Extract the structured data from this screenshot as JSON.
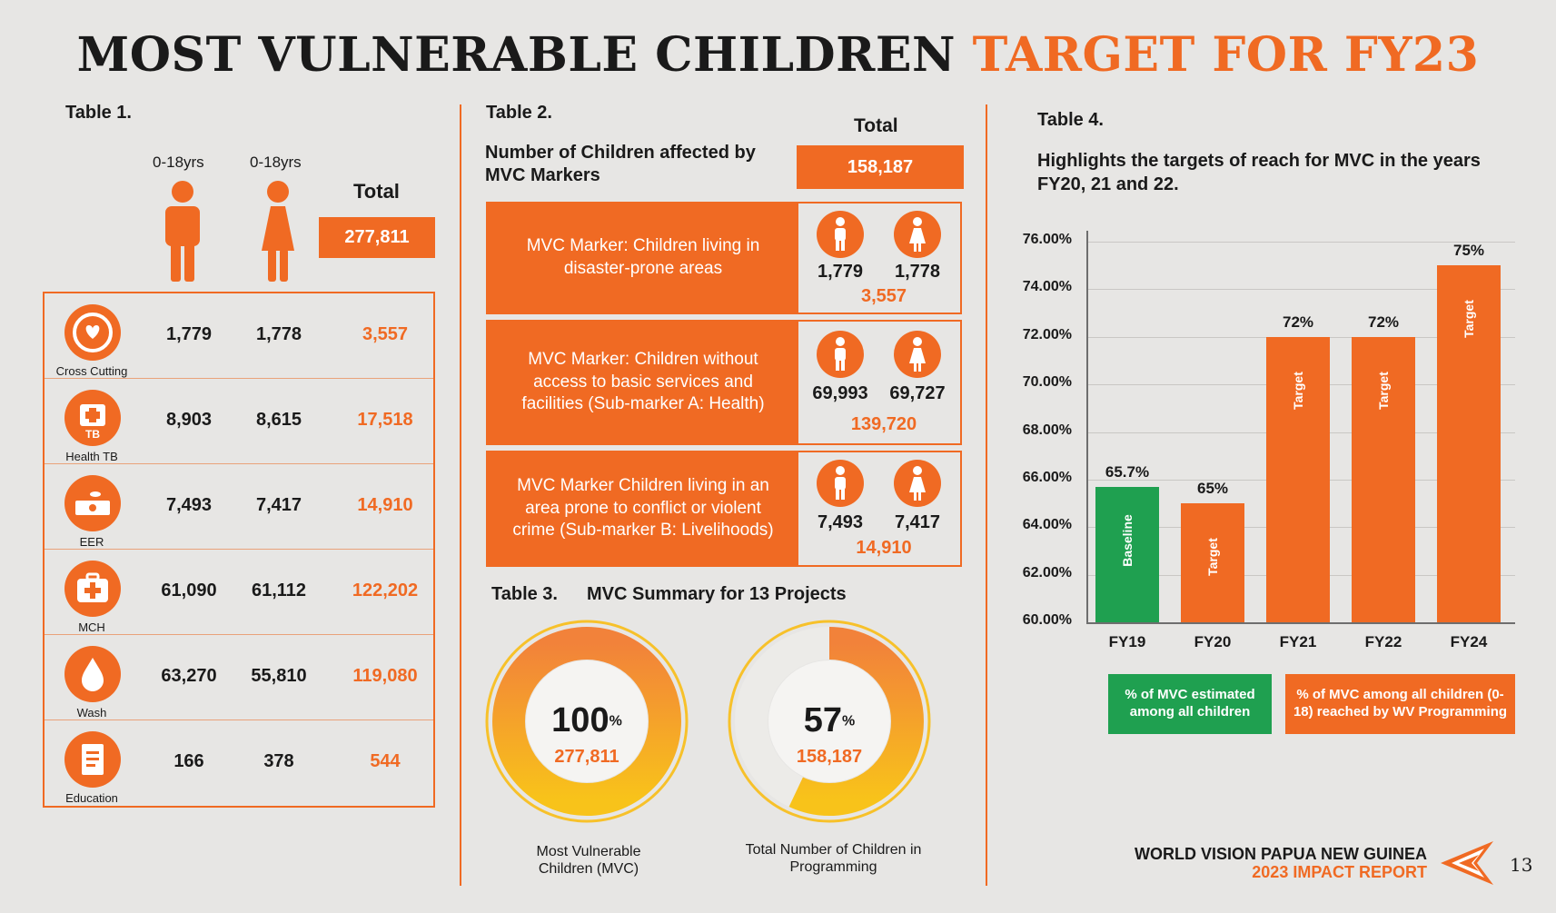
{
  "title": {
    "part1": "MOST VULNERABLE CHILDREN",
    "part2": "TARGET FOR FY23"
  },
  "table1": {
    "label": "Table 1.",
    "age_male": "0-18yrs",
    "age_female": "0-18yrs",
    "total_label": "Total",
    "total_value": "277,811",
    "rows": [
      {
        "category": "Cross Cutting",
        "icon": "heart-hands-icon",
        "male": "1,779",
        "female": "1,778",
        "total": "3,557"
      },
      {
        "category": "Health TB",
        "icon": "medical-kit-tb-icon",
        "male": "8,903",
        "female": "8,615",
        "total": "17,518"
      },
      {
        "category": "EER",
        "icon": "money-bundle-icon",
        "male": "7,493",
        "female": "7,417",
        "total": "14,910"
      },
      {
        "category": "MCH",
        "icon": "medical-kit-icon",
        "male": "61,090",
        "female": "61,112",
        "total": "122,202"
      },
      {
        "category": "Wash",
        "icon": "water-drop-icon",
        "male": "63,270",
        "female": "55,810",
        "total": "119,080"
      },
      {
        "category": "Education",
        "icon": "book-icon",
        "male": "166",
        "female": "378",
        "total": "544"
      }
    ]
  },
  "table2": {
    "label": "Table 2.",
    "heading": "Number of Children affected by MVC Markers",
    "total_label": "Total",
    "total_value": "158,187",
    "markers": [
      {
        "text": "MVC Marker: Children living in disaster-prone areas",
        "male": "1,779",
        "female": "1,778",
        "total": "3,557"
      },
      {
        "text": "MVC Marker:  Children without access to basic services and facilities (Sub-marker A: Health)",
        "male": "69,993",
        "female": "69,727",
        "total": "139,720"
      },
      {
        "text": "MVC Marker Children living in an area prone to conflict or violent crime (Sub-marker B: Livelihoods)",
        "male": "7,493",
        "female": "7,417",
        "total": "14,910"
      }
    ]
  },
  "table3": {
    "label": "Table 3.",
    "heading": "MVC Summary for 13 Projects",
    "donuts": [
      {
        "percent": "100",
        "percent_sign": "%",
        "value": "277,811",
        "fraction": 1.0,
        "caption": "Most Vulnerable Children (MVC)"
      },
      {
        "percent": "57",
        "percent_sign": "%",
        "value": "158,187",
        "fraction": 0.57,
        "caption": "Total Number of Children in Programming"
      }
    ]
  },
  "table4": {
    "label": "Table 4.",
    "heading": "Highlights the targets of reach for MVC in the years FY20, 21 and 22.",
    "legend": [
      {
        "text": "% of MVC estimated among all children",
        "color": "#1fa050"
      },
      {
        "text": "% of MVC among all children (0-18) reached by WV Programming",
        "color": "#f06a23"
      }
    ]
  },
  "chart_data": {
    "type": "bar",
    "title": "",
    "xlabel": "",
    "ylabel": "",
    "ylim": [
      60,
      76
    ],
    "yticks": [
      "60.00%",
      "62.00%",
      "64.00%",
      "66.00%",
      "68.00%",
      "70.00%",
      "72.00%",
      "74.00%",
      "76.00%"
    ],
    "categories": [
      "FY19",
      "FY20",
      "FY21",
      "FY22",
      "FY24"
    ],
    "values": [
      65.7,
      65,
      72,
      72,
      75
    ],
    "data_labels": [
      "65.7%",
      "65%",
      "72%",
      "72%",
      "75%"
    ],
    "bar_labels": [
      "Baseline",
      "Target",
      "Target",
      "Target",
      "Target"
    ],
    "colors": [
      "#1fa050",
      "#f06a23",
      "#f06a23",
      "#f06a23",
      "#f06a23"
    ],
    "grid": true
  },
  "footer": {
    "org": "WORLD VISION PAPUA NEW GUINEA",
    "report": "2023 IMPACT REPORT",
    "page": "13"
  },
  "colors": {
    "accent": "#f06a23",
    "green": "#1fa050",
    "background": "#e7e6e4"
  }
}
